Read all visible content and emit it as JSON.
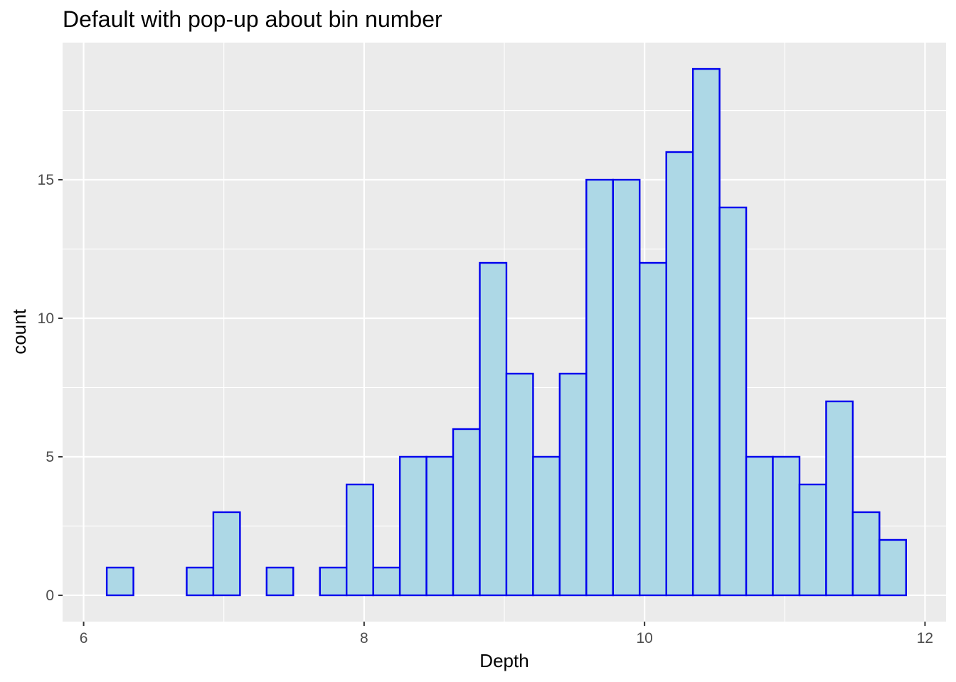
{
  "chart_data": {
    "type": "bar",
    "title": "Default with pop-up about bin number",
    "xlabel": "Depth",
    "ylabel": "count",
    "xlim": [
      5.85,
      12.15
    ],
    "ylim": [
      -0.95,
      19.95
    ],
    "x_ticks": [
      6,
      8,
      10,
      12
    ],
    "y_ticks": [
      0,
      5,
      10,
      15
    ],
    "bin_width": 0.19,
    "bins": [
      {
        "x": 6.26,
        "count": 1
      },
      {
        "x": 6.45,
        "count": 0
      },
      {
        "x": 6.64,
        "count": 0
      },
      {
        "x": 6.83,
        "count": 1
      },
      {
        "x": 7.02,
        "count": 3
      },
      {
        "x": 7.21,
        "count": 0
      },
      {
        "x": 7.4,
        "count": 1
      },
      {
        "x": 7.59,
        "count": 0
      },
      {
        "x": 7.78,
        "count": 1
      },
      {
        "x": 7.97,
        "count": 4
      },
      {
        "x": 8.16,
        "count": 1
      },
      {
        "x": 8.35,
        "count": 5
      },
      {
        "x": 8.54,
        "count": 5
      },
      {
        "x": 8.73,
        "count": 6
      },
      {
        "x": 8.92,
        "count": 12
      },
      {
        "x": 9.11,
        "count": 8
      },
      {
        "x": 9.3,
        "count": 5
      },
      {
        "x": 9.49,
        "count": 8
      },
      {
        "x": 9.68,
        "count": 15
      },
      {
        "x": 9.87,
        "count": 15
      },
      {
        "x": 10.06,
        "count": 12
      },
      {
        "x": 10.25,
        "count": 16
      },
      {
        "x": 10.44,
        "count": 19
      },
      {
        "x": 10.63,
        "count": 14
      },
      {
        "x": 10.82,
        "count": 5
      },
      {
        "x": 11.01,
        "count": 5
      },
      {
        "x": 11.2,
        "count": 4
      },
      {
        "x": 11.39,
        "count": 7
      },
      {
        "x": 11.58,
        "count": 3
      },
      {
        "x": 11.77,
        "count": 2
      }
    ],
    "grid": true,
    "colors": {
      "fill": "#add8e6",
      "outline": "#0000ee",
      "panel": "#ebebeb",
      "grid": "#ffffff"
    }
  }
}
